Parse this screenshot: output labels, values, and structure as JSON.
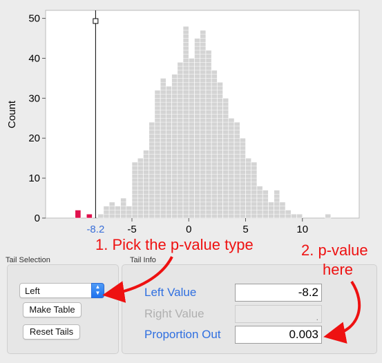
{
  "chart_data": {
    "type": "histogram",
    "ylabel": "Count",
    "xlabel": "",
    "xlim": [
      -12.6,
      15
    ],
    "ylim": [
      0,
      52
    ],
    "x_ticks": [
      -5,
      0,
      5,
      10
    ],
    "y_ticks": [
      0,
      10,
      20,
      30,
      40,
      50
    ],
    "threshold_label": "-8.2",
    "threshold": -8.2,
    "bin_width": 0.5,
    "bins": [
      {
        "x": -10.0,
        "count": 2,
        "tail": true
      },
      {
        "x": -9.0,
        "count": 1,
        "tail": true
      },
      {
        "x": -8.0,
        "count": 1
      },
      {
        "x": -7.5,
        "count": 3
      },
      {
        "x": -7.0,
        "count": 4
      },
      {
        "x": -6.5,
        "count": 3
      },
      {
        "x": -6.0,
        "count": 5
      },
      {
        "x": -5.5,
        "count": 3
      },
      {
        "x": -5.0,
        "count": 14
      },
      {
        "x": -4.5,
        "count": 15
      },
      {
        "x": -4.0,
        "count": 17
      },
      {
        "x": -3.5,
        "count": 24
      },
      {
        "x": -3.0,
        "count": 32
      },
      {
        "x": -2.5,
        "count": 35
      },
      {
        "x": -2.0,
        "count": 33
      },
      {
        "x": -1.5,
        "count": 36
      },
      {
        "x": -1.0,
        "count": 39
      },
      {
        "x": -0.5,
        "count": 48
      },
      {
        "x": 0.0,
        "count": 40
      },
      {
        "x": 0.5,
        "count": 45
      },
      {
        "x": 1.0,
        "count": 47
      },
      {
        "x": 1.5,
        "count": 42
      },
      {
        "x": 2.0,
        "count": 37
      },
      {
        "x": 2.5,
        "count": 34
      },
      {
        "x": 3.0,
        "count": 30
      },
      {
        "x": 3.5,
        "count": 25
      },
      {
        "x": 4.0,
        "count": 24
      },
      {
        "x": 4.5,
        "count": 20
      },
      {
        "x": 5.0,
        "count": 15
      },
      {
        "x": 5.5,
        "count": 14
      },
      {
        "x": 6.0,
        "count": 8
      },
      {
        "x": 6.5,
        "count": 7
      },
      {
        "x": 7.0,
        "count": 4
      },
      {
        "x": 7.5,
        "count": 7
      },
      {
        "x": 8.0,
        "count": 4
      },
      {
        "x": 8.5,
        "count": 2
      },
      {
        "x": 9.0,
        "count": 1
      },
      {
        "x": 9.5,
        "count": 1
      },
      {
        "x": 12.0,
        "count": 1
      }
    ],
    "colors": {
      "bar": "#d4d4d4",
      "bar_edge": "#ffffff",
      "tail": "#e0114d",
      "plot_bg": "#ffffff",
      "line": "#000000",
      "threshold_label": "#3a6fd8"
    }
  },
  "tail_selection": {
    "title": "Tail Selection",
    "select_value": "Left",
    "make_table_label": "Make Table",
    "reset_tails_label": "Reset Tails"
  },
  "tail_info": {
    "title": "Tail Info",
    "left_value_label": "Left Value",
    "left_value": "-8.2",
    "right_value_label": "Right Value",
    "right_value": ".",
    "proportion_label": "Proportion Out",
    "proportion_value": "0.003"
  },
  "annotations": {
    "step1": "1. Pick the p-value type",
    "step2_line1": "2. p-value",
    "step2_line2": "here"
  },
  "colors": {
    "link_label": "#2f6fe0",
    "disabled_label": "#b0b0b0",
    "annotation": "#ee1111"
  }
}
